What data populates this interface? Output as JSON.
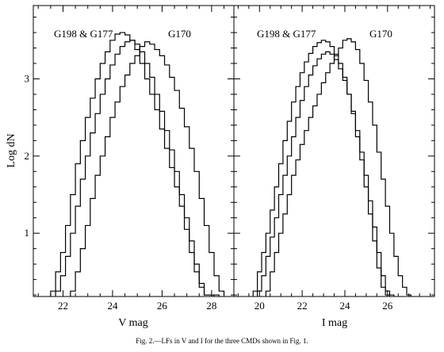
{
  "chart_data": [
    {
      "type": "line",
      "xlabel": "V mag",
      "ylabel": "Log dN",
      "xlim": [
        20.8,
        28.9
      ],
      "ylim": [
        0.18,
        3.95
      ],
      "xticks": [
        22,
        24,
        26,
        28
      ],
      "yticks": [
        1,
        2,
        3
      ],
      "annotations": [
        "G198 & G177",
        "G170"
      ],
      "series": [
        {
          "x": [
            21.6,
            21.8,
            22.0,
            22.2,
            22.4,
            22.6,
            22.8,
            23.0,
            23.2,
            23.4,
            23.6,
            23.8,
            24.0,
            24.2,
            24.4,
            24.6,
            24.8,
            25.0,
            25.2,
            25.4,
            25.6,
            25.8,
            26.0,
            26.2,
            26.4,
            26.6,
            26.8,
            27.0,
            27.2,
            27.4,
            27.6,
            27.8,
            28.0
          ],
          "y": [
            0.25,
            0.5,
            0.75,
            1.1,
            1.5,
            1.9,
            2.2,
            2.5,
            2.75,
            3.0,
            3.2,
            3.35,
            3.5,
            3.58,
            3.6,
            3.57,
            3.5,
            3.38,
            3.2,
            3.0,
            2.8,
            2.6,
            2.35,
            2.1,
            1.85,
            1.6,
            1.35,
            1.05,
            0.75,
            0.5,
            0.3,
            0.2,
            0.2
          ]
        },
        {
          "x": [
            21.8,
            22.0,
            22.2,
            22.4,
            22.6,
            22.8,
            23.0,
            23.2,
            23.4,
            23.6,
            23.8,
            24.0,
            24.2,
            24.4,
            24.6,
            24.8,
            25.0,
            25.2,
            25.4,
            25.6,
            25.8,
            26.0,
            26.2,
            26.4,
            26.6,
            26.8,
            27.0,
            27.2,
            27.4,
            27.6,
            27.8,
            28.0,
            28.2
          ],
          "y": [
            0.25,
            0.45,
            0.7,
            1.0,
            1.35,
            1.7,
            2.0,
            2.3,
            2.55,
            2.8,
            3.0,
            3.18,
            3.32,
            3.42,
            3.48,
            3.5,
            3.45,
            3.35,
            3.2,
            3.02,
            2.8,
            2.58,
            2.33,
            2.08,
            1.8,
            1.5,
            1.2,
            0.9,
            0.6,
            0.35,
            0.2,
            0.2,
            0.2
          ]
        },
        {
          "x": [
            22.4,
            22.6,
            22.8,
            23.0,
            23.2,
            23.4,
            23.6,
            23.8,
            24.0,
            24.2,
            24.4,
            24.6,
            24.8,
            25.0,
            25.2,
            25.4,
            25.6,
            25.8,
            26.0,
            26.2,
            26.4,
            26.6,
            26.8,
            27.0,
            27.2,
            27.4,
            27.6,
            27.8,
            28.0,
            28.2,
            28.4
          ],
          "y": [
            0.25,
            0.5,
            0.8,
            1.1,
            1.45,
            1.75,
            2.0,
            2.25,
            2.5,
            2.7,
            2.9,
            3.05,
            3.2,
            3.3,
            3.42,
            3.48,
            3.45,
            3.38,
            3.3,
            3.18,
            3.02,
            2.85,
            2.62,
            2.38,
            2.1,
            1.8,
            1.45,
            1.1,
            0.75,
            0.45,
            0.25
          ]
        }
      ]
    },
    {
      "type": "line",
      "xlabel": "I mag",
      "ylabel": "",
      "xlim": [
        18.8,
        28.2
      ],
      "ylim": [
        0.18,
        3.95
      ],
      "xticks": [
        20,
        22,
        24,
        26
      ],
      "yticks": [
        1,
        2,
        3
      ],
      "annotations": [
        "G198 & G177",
        "G170"
      ],
      "series": [
        {
          "x": [
            19.8,
            20.0,
            20.2,
            20.4,
            20.6,
            20.8,
            21.0,
            21.2,
            21.4,
            21.6,
            21.8,
            22.0,
            22.2,
            22.4,
            22.6,
            22.8,
            23.0,
            23.2,
            23.4,
            23.6,
            23.8,
            24.0,
            24.2,
            24.4,
            24.6,
            24.8,
            25.0,
            25.2,
            25.4,
            25.6,
            25.8,
            26.0
          ],
          "y": [
            0.25,
            0.5,
            0.75,
            1.0,
            1.3,
            1.6,
            1.9,
            2.2,
            2.45,
            2.7,
            2.9,
            3.08,
            3.22,
            3.33,
            3.42,
            3.47,
            3.5,
            3.48,
            3.42,
            3.32,
            3.2,
            3.02,
            2.8,
            2.55,
            2.25,
            1.95,
            1.6,
            1.25,
            0.9,
            0.55,
            0.3,
            0.2
          ]
        },
        {
          "x": [
            20.0,
            20.2,
            20.4,
            20.6,
            20.8,
            21.0,
            21.2,
            21.4,
            21.6,
            21.8,
            22.0,
            22.2,
            22.4,
            22.6,
            22.8,
            23.0,
            23.2,
            23.4,
            23.6,
            23.8,
            24.0,
            24.2,
            24.4,
            24.6,
            24.8,
            25.0,
            25.2,
            25.4,
            25.6,
            25.8,
            26.0,
            26.2
          ],
          "y": [
            0.25,
            0.45,
            0.7,
            0.95,
            1.2,
            1.5,
            1.75,
            2.0,
            2.25,
            2.5,
            2.72,
            2.9,
            3.05,
            3.17,
            3.26,
            3.32,
            3.35,
            3.32,
            3.25,
            3.13,
            2.98,
            2.8,
            2.58,
            2.33,
            2.05,
            1.75,
            1.42,
            1.08,
            0.75,
            0.45,
            0.25,
            0.2
          ]
        },
        {
          "x": [
            20.4,
            20.6,
            20.8,
            21.0,
            21.2,
            21.4,
            21.6,
            21.8,
            22.0,
            22.2,
            22.4,
            22.6,
            22.8,
            23.0,
            23.2,
            23.4,
            23.6,
            23.8,
            24.0,
            24.2,
            24.4,
            24.6,
            24.8,
            25.0,
            25.2,
            25.4,
            25.6,
            25.8,
            26.0,
            26.2,
            26.4,
            26.6,
            26.8,
            27.0
          ],
          "y": [
            0.25,
            0.5,
            0.75,
            1.0,
            1.25,
            1.5,
            1.75,
            1.95,
            2.15,
            2.33,
            2.5,
            2.65,
            2.8,
            2.95,
            3.08,
            3.2,
            3.3,
            3.4,
            3.5,
            3.52,
            3.48,
            3.38,
            3.2,
            2.98,
            2.7,
            2.4,
            2.05,
            1.7,
            1.35,
            1.0,
            0.7,
            0.45,
            0.3,
            0.2
          ]
        }
      ]
    }
  ],
  "caption": "Fig. 2.—LFs in V and I for the three CMDs shown in Fig. 1."
}
